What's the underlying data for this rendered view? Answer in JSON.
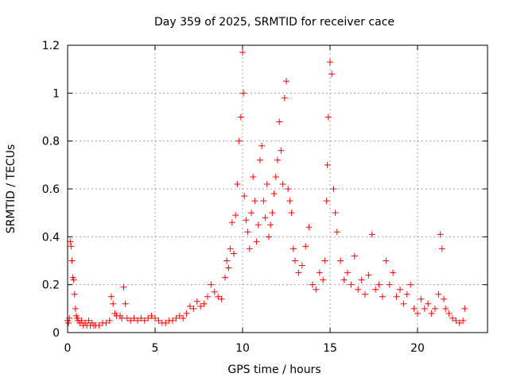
{
  "chart_data": {
    "type": "scatter",
    "title": "Day 359 of 2025, SRMTID for receiver cace",
    "xlabel": "GPS time / hours",
    "ylabel": "SRMTID / TECUs",
    "xlim": [
      0,
      24
    ],
    "ylim": [
      0,
      1.2
    ],
    "xticks": [
      0,
      5,
      10,
      15,
      20
    ],
    "xtick_labels": [
      "0",
      "5",
      "10",
      "15",
      "20"
    ],
    "yticks": [
      0,
      0.2,
      0.4,
      0.6,
      0.8,
      1.0,
      1.2
    ],
    "ytick_labels": [
      "0",
      "0.2",
      "0.4",
      "0.6",
      "0.8",
      "1",
      "1.2"
    ],
    "grid": true,
    "marker": "+",
    "color": "#ff0000",
    "series": [
      {
        "name": "SRMTID",
        "x": [
          0.0,
          0.05,
          0.1,
          0.15,
          0.2,
          0.25,
          0.3,
          0.35,
          0.4,
          0.45,
          0.5,
          0.55,
          0.6,
          0.7,
          0.8,
          0.9,
          1.0,
          1.1,
          1.2,
          1.3,
          1.4,
          1.5,
          1.6,
          1.8,
          2.0,
          2.2,
          2.4,
          2.5,
          2.6,
          2.7,
          2.8,
          3.0,
          3.1,
          3.2,
          3.3,
          3.4,
          3.6,
          3.8,
          4.0,
          4.2,
          4.4,
          4.6,
          4.8,
          5.0,
          5.2,
          5.4,
          5.6,
          5.8,
          6.0,
          6.2,
          6.4,
          6.6,
          6.8,
          7.0,
          7.2,
          7.4,
          7.6,
          7.8,
          8.0,
          8.2,
          8.4,
          8.6,
          8.8,
          9.0,
          9.1,
          9.2,
          9.3,
          9.4,
          9.5,
          9.6,
          9.7,
          9.8,
          9.9,
          10.0,
          10.05,
          10.1,
          10.2,
          10.3,
          10.4,
          10.5,
          10.6,
          10.7,
          10.8,
          10.9,
          11.0,
          11.1,
          11.2,
          11.3,
          11.4,
          11.5,
          11.6,
          11.7,
          11.8,
          11.9,
          12.0,
          12.1,
          12.2,
          12.3,
          12.4,
          12.5,
          12.6,
          12.7,
          12.8,
          12.9,
          13.0,
          13.2,
          13.4,
          13.6,
          13.8,
          14.0,
          14.2,
          14.4,
          14.6,
          14.7,
          14.8,
          14.85,
          14.9,
          15.0,
          15.1,
          15.2,
          15.3,
          15.4,
          15.6,
          15.8,
          16.0,
          16.2,
          16.4,
          16.6,
          16.8,
          17.0,
          17.2,
          17.4,
          17.6,
          17.8,
          18.0,
          18.2,
          18.4,
          18.6,
          18.8,
          19.0,
          19.2,
          19.4,
          19.6,
          19.8,
          20.0,
          20.2,
          20.4,
          20.6,
          20.8,
          21.0,
          21.2,
          21.3,
          21.4,
          21.5,
          21.6,
          21.8,
          22.0,
          22.2,
          22.4,
          22.6,
          22.7
        ],
        "y": [
          0.05,
          0.04,
          0.06,
          0.38,
          0.36,
          0.3,
          0.23,
          0.22,
          0.16,
          0.1,
          0.07,
          0.06,
          0.05,
          0.04,
          0.05,
          0.03,
          0.04,
          0.03,
          0.05,
          0.03,
          0.04,
          0.03,
          0.03,
          0.03,
          0.04,
          0.04,
          0.05,
          0.15,
          0.12,
          0.08,
          0.07,
          0.07,
          0.06,
          0.19,
          0.12,
          0.06,
          0.05,
          0.06,
          0.05,
          0.06,
          0.05,
          0.06,
          0.07,
          0.06,
          0.05,
          0.04,
          0.04,
          0.05,
          0.05,
          0.06,
          0.07,
          0.06,
          0.08,
          0.11,
          0.1,
          0.13,
          0.11,
          0.12,
          0.15,
          0.2,
          0.17,
          0.15,
          0.14,
          0.23,
          0.3,
          0.27,
          0.35,
          0.46,
          0.33,
          0.49,
          0.62,
          0.8,
          0.9,
          1.17,
          1.0,
          0.57,
          0.47,
          0.42,
          0.35,
          0.5,
          0.65,
          0.55,
          0.38,
          0.45,
          0.72,
          0.78,
          0.55,
          0.48,
          0.62,
          0.4,
          0.45,
          0.5,
          0.58,
          0.65,
          0.72,
          0.88,
          0.76,
          0.62,
          0.98,
          1.05,
          0.6,
          0.55,
          0.5,
          0.35,
          0.3,
          0.25,
          0.28,
          0.36,
          0.44,
          0.2,
          0.18,
          0.25,
          0.22,
          0.3,
          0.55,
          0.7,
          0.9,
          1.13,
          1.08,
          0.6,
          0.5,
          0.42,
          0.3,
          0.22,
          0.25,
          0.2,
          0.32,
          0.18,
          0.22,
          0.16,
          0.24,
          0.41,
          0.18,
          0.2,
          0.15,
          0.3,
          0.2,
          0.25,
          0.15,
          0.18,
          0.12,
          0.16,
          0.2,
          0.1,
          0.08,
          0.14,
          0.1,
          0.12,
          0.08,
          0.1,
          0.16,
          0.41,
          0.35,
          0.14,
          0.1,
          0.08,
          0.06,
          0.05,
          0.04,
          0.05,
          0.1
        ]
      }
    ]
  }
}
